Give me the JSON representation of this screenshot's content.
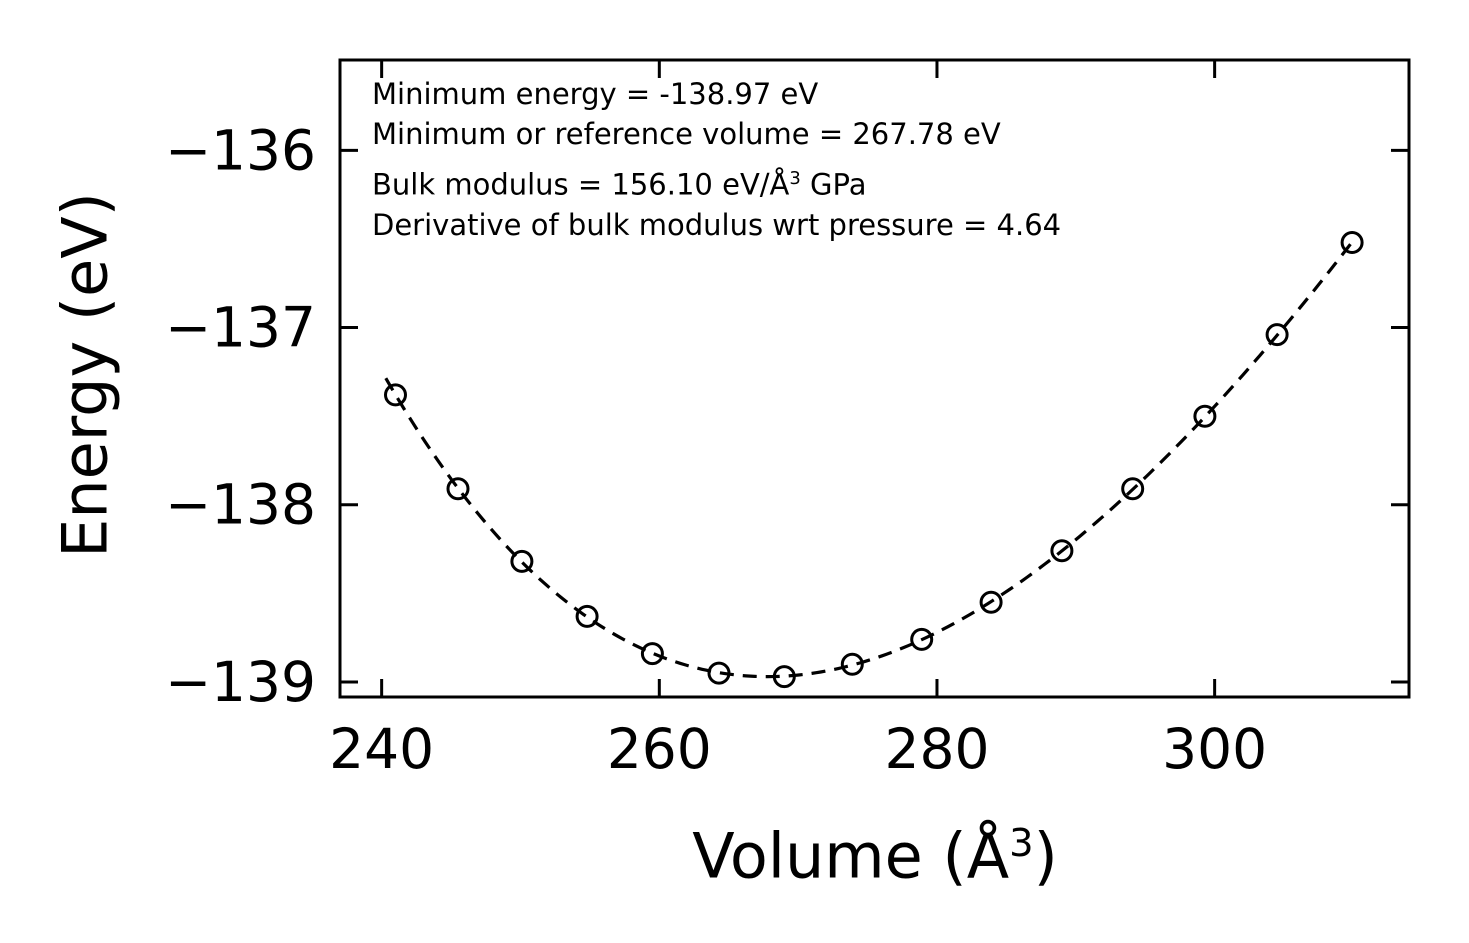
{
  "figure": {
    "background": "#ffffff",
    "foreground": "#000000"
  },
  "annotation": {
    "line1": "Minimum energy = -138.97 eV",
    "line2": "Minimum or reference volume = 267.78 eV",
    "line3_prefix": "Bulk modulus = 156.10 eV/Å",
    "line3_sup": "3",
    "line3_suffix": " GPa",
    "line4": "Derivative of bulk modulus wrt pressure = 4.64"
  },
  "axes": {
    "ylabel": "Energy (eV)",
    "xlabel_prefix": "Volume (Å",
    "xlabel_sup": "3",
    "xlabel_suffix": ")"
  },
  "chart_data": {
    "type": "line",
    "title": "",
    "xlabel": "Volume (Å^3)",
    "ylabel": "Energy (eV)",
    "line_style": "dashed",
    "marker": "open-circle",
    "color": "#000000",
    "grid": false,
    "legend": "none",
    "x_ticks": [
      240,
      260,
      280,
      300
    ],
    "y_ticks": [
      -136,
      -137,
      -138,
      -139
    ],
    "xlim": [
      237,
      314
    ],
    "ylim": [
      -139.085,
      -135.49
    ],
    "x": [
      241.0,
      245.5,
      250.1,
      254.8,
      259.5,
      264.3,
      269.0,
      273.9,
      278.9,
      283.9,
      289.0,
      294.1,
      299.3,
      304.5,
      309.9
    ],
    "y": [
      -137.38,
      -137.91,
      -138.32,
      -138.63,
      -138.84,
      -138.95,
      -138.97,
      -138.9,
      -138.76,
      -138.55,
      -138.26,
      -137.91,
      -137.5,
      -137.04,
      -136.52
    ],
    "fit": {
      "model": "birch-murnaghan",
      "E0_eV": -138.97,
      "V0_A3": 267.78,
      "B0_GPa": 156.1,
      "B0_prime": 4.64,
      "curve_v_range": [
        240.3,
        309.9
      ]
    }
  }
}
